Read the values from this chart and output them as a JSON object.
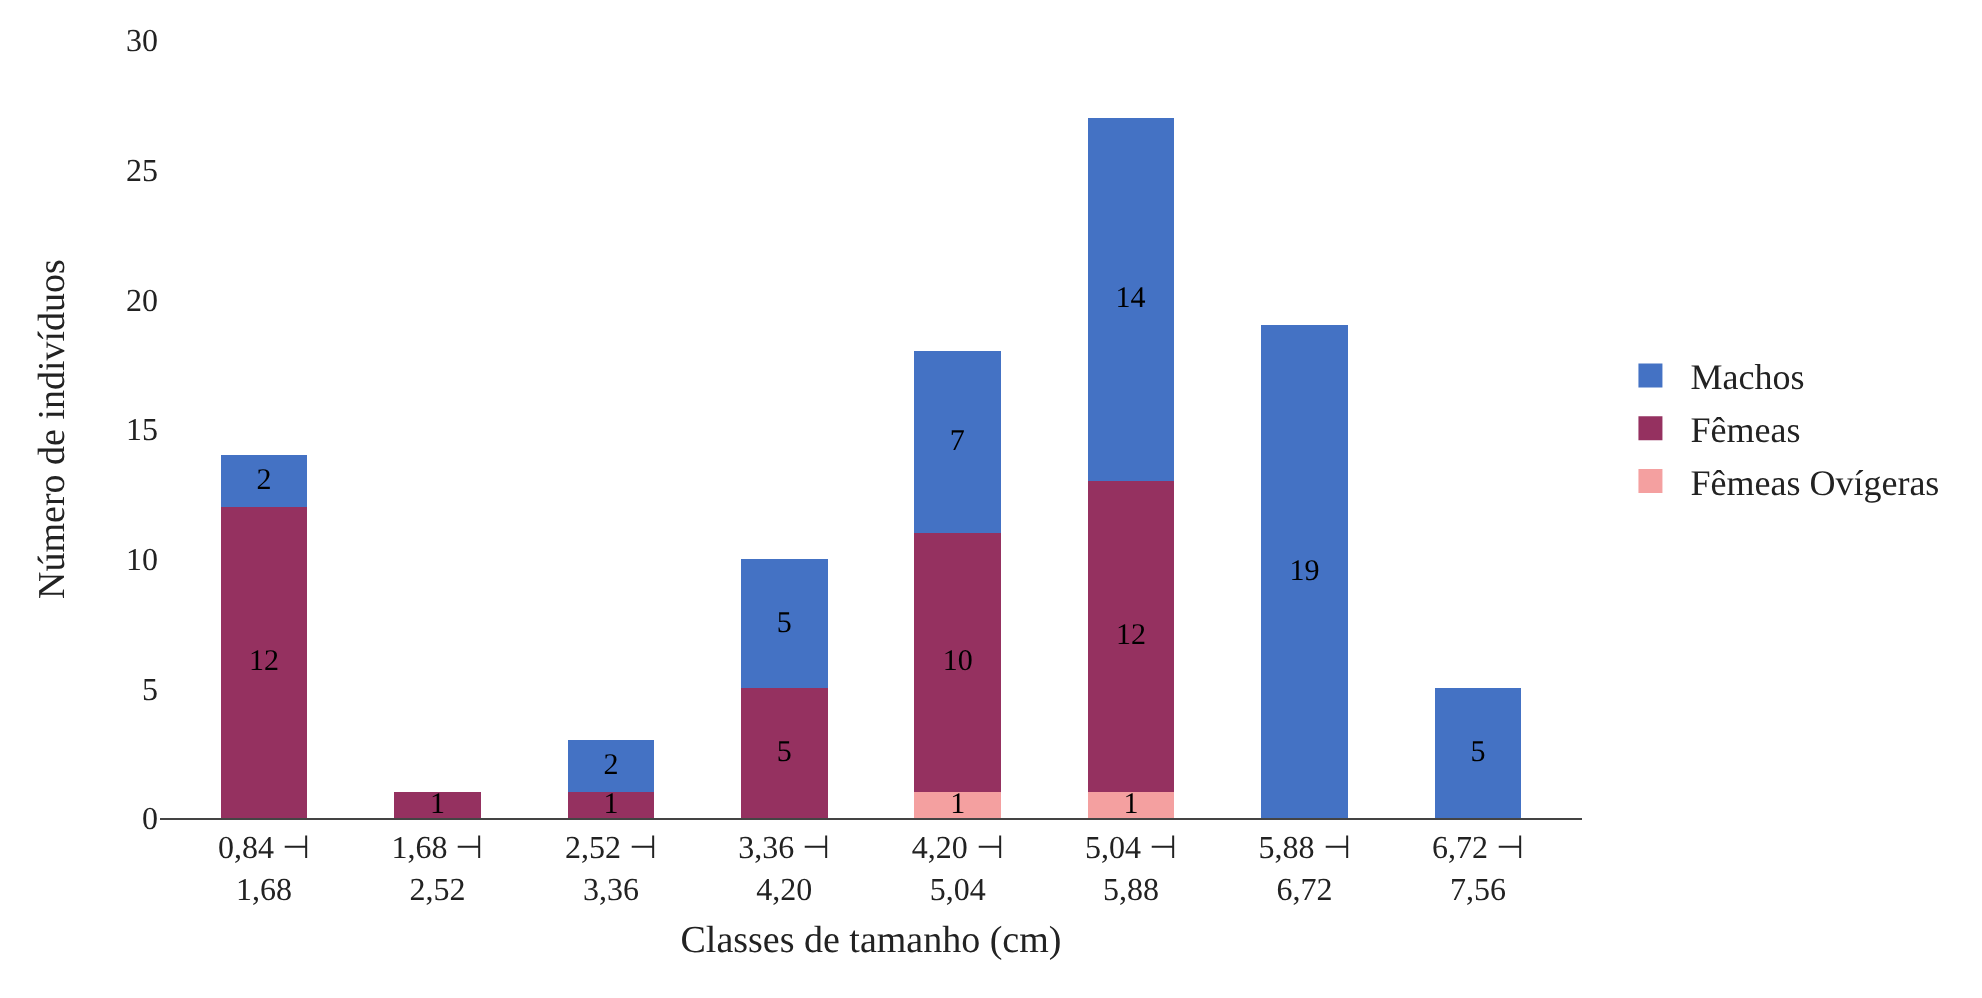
{
  "chart_data": {
    "type": "bar",
    "stacked": true,
    "xlabel": "Classes de tamanho (cm)",
    "ylabel": "Número de indivíduos",
    "categories": [
      "0,84 ⊣ 1,68",
      "1,68 ⊣ 2,52",
      "2,52 ⊣ 3,36",
      "3,36 ⊣ 4,20",
      "4,20 ⊣ 5,04",
      "5,04 ⊣ 5,88",
      "5,88 ⊣ 6,72",
      "6,72 ⊣ 7,56"
    ],
    "series": [
      {
        "name": "Fêmeas Ovígeras",
        "color": "#f4a0a0",
        "values": [
          0,
          0,
          0,
          0,
          1,
          1,
          0,
          0
        ],
        "value_labels": [
          null,
          null,
          null,
          null,
          "1",
          "1",
          null,
          null
        ]
      },
      {
        "name": "Fêmeas",
        "color": "#953160",
        "values": [
          12,
          1,
          1,
          5,
          10,
          12,
          0,
          0
        ],
        "value_labels": [
          "12",
          "1",
          "1",
          "5",
          "10",
          "12",
          null,
          null
        ]
      },
      {
        "name": "Machos",
        "color": "#4472c4",
        "values": [
          2,
          0,
          2,
          5,
          7,
          14,
          19,
          5
        ],
        "value_labels": [
          "2",
          null,
          "2",
          "5",
          "7",
          "14",
          "19",
          "5"
        ]
      }
    ],
    "ylim": [
      0,
      30
    ],
    "yticks": [
      0,
      5,
      10,
      15,
      20,
      25,
      30
    ],
    "grid": false,
    "legend": "right"
  }
}
